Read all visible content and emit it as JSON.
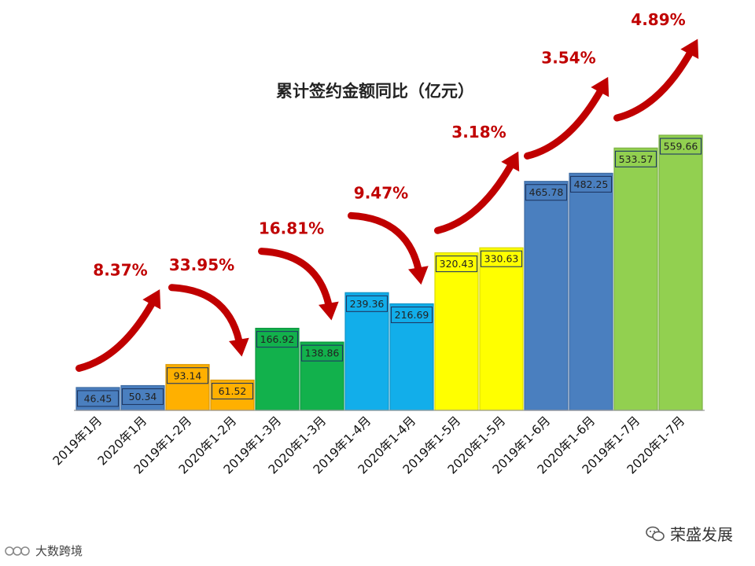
{
  "chart_data": {
    "type": "bar",
    "title": "累计签约金额同比（亿元）",
    "categories": [
      "2019年1月",
      "2020年1月",
      "2019年1-2月",
      "2020年1-2月",
      "2019年1-3月",
      "2020年1-3月",
      "2019年1-4月",
      "2020年1-4月",
      "2019年1-5月",
      "2020年1-5月",
      "2019年1-6月",
      "2020年1-6月",
      "2019年1-7月",
      "2020年1-7月"
    ],
    "values": [
      46.45,
      50.34,
      93.14,
      61.52,
      166.92,
      138.86,
      239.36,
      216.69,
      320.43,
      330.63,
      465.78,
      482.25,
      533.57,
      559.66
    ],
    "value_labels": [
      "46.45",
      "50.34",
      "93.14",
      "61.52",
      "166.92",
      "138.86",
      "239.36",
      "216.69",
      "320.43",
      "330.63",
      "465.78",
      "482.25",
      "533.57",
      "559.66"
    ],
    "bar_colors": [
      "#4a7fbf",
      "#4a7fbf",
      "#ffb000",
      "#ffb000",
      "#12b14c",
      "#12b14c",
      "#12aeea",
      "#12aeea",
      "#ffff00",
      "#ffff00",
      "#4a7fbf",
      "#4a7fbf",
      "#92d050",
      "#92d050"
    ],
    "ylim": [
      0,
      600
    ],
    "xlabel": "",
    "ylabel": "",
    "grid": false,
    "legend": "none",
    "annotations": [
      {
        "text": "8.37%",
        "direction": "up",
        "pair": [
          0,
          1
        ]
      },
      {
        "text": "33.95%",
        "direction": "down",
        "pair": [
          2,
          3
        ]
      },
      {
        "text": "16.81%",
        "direction": "down",
        "pair": [
          4,
          5
        ]
      },
      {
        "text": "9.47%",
        "direction": "down",
        "pair": [
          6,
          7
        ]
      },
      {
        "text": "3.18%",
        "direction": "up",
        "pair": [
          8,
          9
        ]
      },
      {
        "text": "3.54%",
        "direction": "up",
        "pair": [
          10,
          11
        ]
      },
      {
        "text": "4.89%",
        "direction": "up",
        "pair": [
          12,
          13
        ]
      }
    ],
    "annotation_color": "#c00000"
  },
  "watermarks": {
    "right_text": "荣盛发展",
    "left_text": "大数跨境"
  }
}
